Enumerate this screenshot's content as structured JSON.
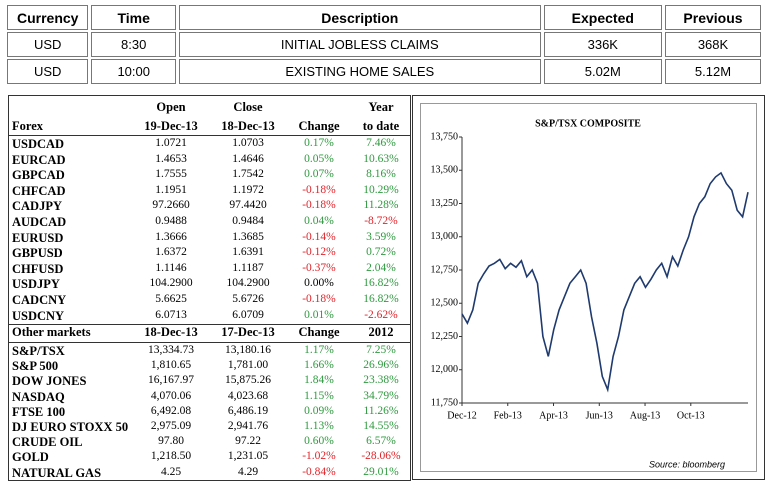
{
  "calendar": {
    "headers": [
      "Currency",
      "Time",
      "Description",
      "Expected",
      "Previous"
    ],
    "rows": [
      [
        "USD",
        "8:30",
        "INITIAL JOBLESS CLAIMS",
        "336K",
        "368K"
      ],
      [
        "USD",
        "10:00",
        "EXISTING HOME SALES",
        "5.02M",
        "5.12M"
      ]
    ]
  },
  "forex": {
    "headers_top": [
      "Open",
      "Close",
      "Year"
    ],
    "headers": [
      "Forex",
      "19-Dec-13",
      "18-Dec-13",
      "Change",
      "to date"
    ],
    "rows": [
      [
        "USDCAD",
        "1.0721",
        "1.0703",
        "0.17%",
        "7.46%"
      ],
      [
        "EURCAD",
        "1.4653",
        "1.4646",
        "0.05%",
        "10.63%"
      ],
      [
        "GBPCAD",
        "1.7555",
        "1.7542",
        "0.07%",
        "8.16%"
      ],
      [
        "CHFCAD",
        "1.1951",
        "1.1972",
        "-0.18%",
        "10.29%"
      ],
      [
        "CADJPY",
        "97.2660",
        "97.4420",
        "-0.18%",
        "11.28%"
      ],
      [
        "AUDCAD",
        "0.9488",
        "0.9484",
        "0.04%",
        "-8.72%"
      ],
      [
        "EURUSD",
        "1.3666",
        "1.3685",
        "-0.14%",
        "3.59%"
      ],
      [
        "GBPUSD",
        "1.6372",
        "1.6391",
        "-0.12%",
        "0.72%"
      ],
      [
        "CHFUSD",
        "1.1146",
        "1.1187",
        "-0.37%",
        "2.04%"
      ],
      [
        "USDJPY",
        "104.2900",
        "104.2900",
        "0.00%",
        "16.82%"
      ],
      [
        "CADCNY",
        "5.6625",
        "5.6726",
        "-0.18%",
        "16.82%"
      ],
      [
        "USDCNY",
        "6.0713",
        "6.0709",
        "0.01%",
        "-2.62%"
      ]
    ]
  },
  "markets": {
    "headers": [
      "Other markets",
      "18-Dec-13",
      "17-Dec-13",
      "Change",
      "2012"
    ],
    "rows": [
      [
        "S&P/TSX",
        "13,334.73",
        "13,180.16",
        "1.17%",
        "7.25%"
      ],
      [
        "S&P 500",
        "1,810.65",
        "1,781.00",
        "1.66%",
        "26.96%"
      ],
      [
        "DOW JONES",
        "16,167.97",
        "15,875.26",
        "1.84%",
        "23.38%"
      ],
      [
        "NASDAQ",
        "4,070.06",
        "4,023.68",
        "1.15%",
        "34.79%"
      ],
      [
        "FTSE 100",
        "6,492.08",
        "6,486.19",
        "0.09%",
        "11.26%"
      ],
      [
        "DJ EURO STOXX 50",
        "2,975.09",
        "2,941.76",
        "1.13%",
        "14.55%"
      ],
      [
        "CRUDE OIL",
        "97.80",
        "97.22",
        "0.60%",
        "6.57%"
      ],
      [
        "GOLD",
        "1,218.50",
        "1,231.05",
        "-1.02%",
        "-28.06%"
      ],
      [
        "NATURAL GAS",
        "4.25",
        "4.29",
        "-0.84%",
        "29.01%"
      ]
    ]
  },
  "chart_data": {
    "type": "line",
    "title": "S&P/TSX COMPOSITE",
    "source": "Source: bloomberg",
    "color": "#1f3a6e",
    "xticks": [
      "Dec-12",
      "Feb-13",
      "Apr-13",
      "Jun-13",
      "Aug-13",
      "Oct-13"
    ],
    "values": [
      12420,
      12350,
      12450,
      12650,
      12720,
      12780,
      12800,
      12830,
      12760,
      12800,
      12770,
      12820,
      12700,
      12750,
      12650,
      12250,
      12100,
      12300,
      12450,
      12550,
      12650,
      12700,
      12750,
      12650,
      12400,
      12200,
      11950,
      11850,
      12100,
      12250,
      12450,
      12550,
      12650,
      12700,
      12620,
      12680,
      12750,
      12800,
      12700,
      12850,
      12780,
      12900,
      13000,
      13150,
      13250,
      13300,
      13400,
      13450,
      13480,
      13400,
      13350,
      13200,
      13150,
      13335
    ],
    "ylim": [
      11750,
      13750
    ],
    "yticks": [
      {
        "value": 11750,
        "label": "11,750"
      },
      {
        "value": 12000,
        "label": "12,000"
      },
      {
        "value": 12250,
        "label": "12,250"
      },
      {
        "value": 12500,
        "label": "12,500"
      },
      {
        "value": 12750,
        "label": "12,750"
      },
      {
        "value": 13000,
        "label": "13,000"
      },
      {
        "value": 13250,
        "label": "13,250"
      },
      {
        "value": 13500,
        "label": "13,500"
      },
      {
        "value": 13750,
        "label": "13,750"
      }
    ]
  }
}
